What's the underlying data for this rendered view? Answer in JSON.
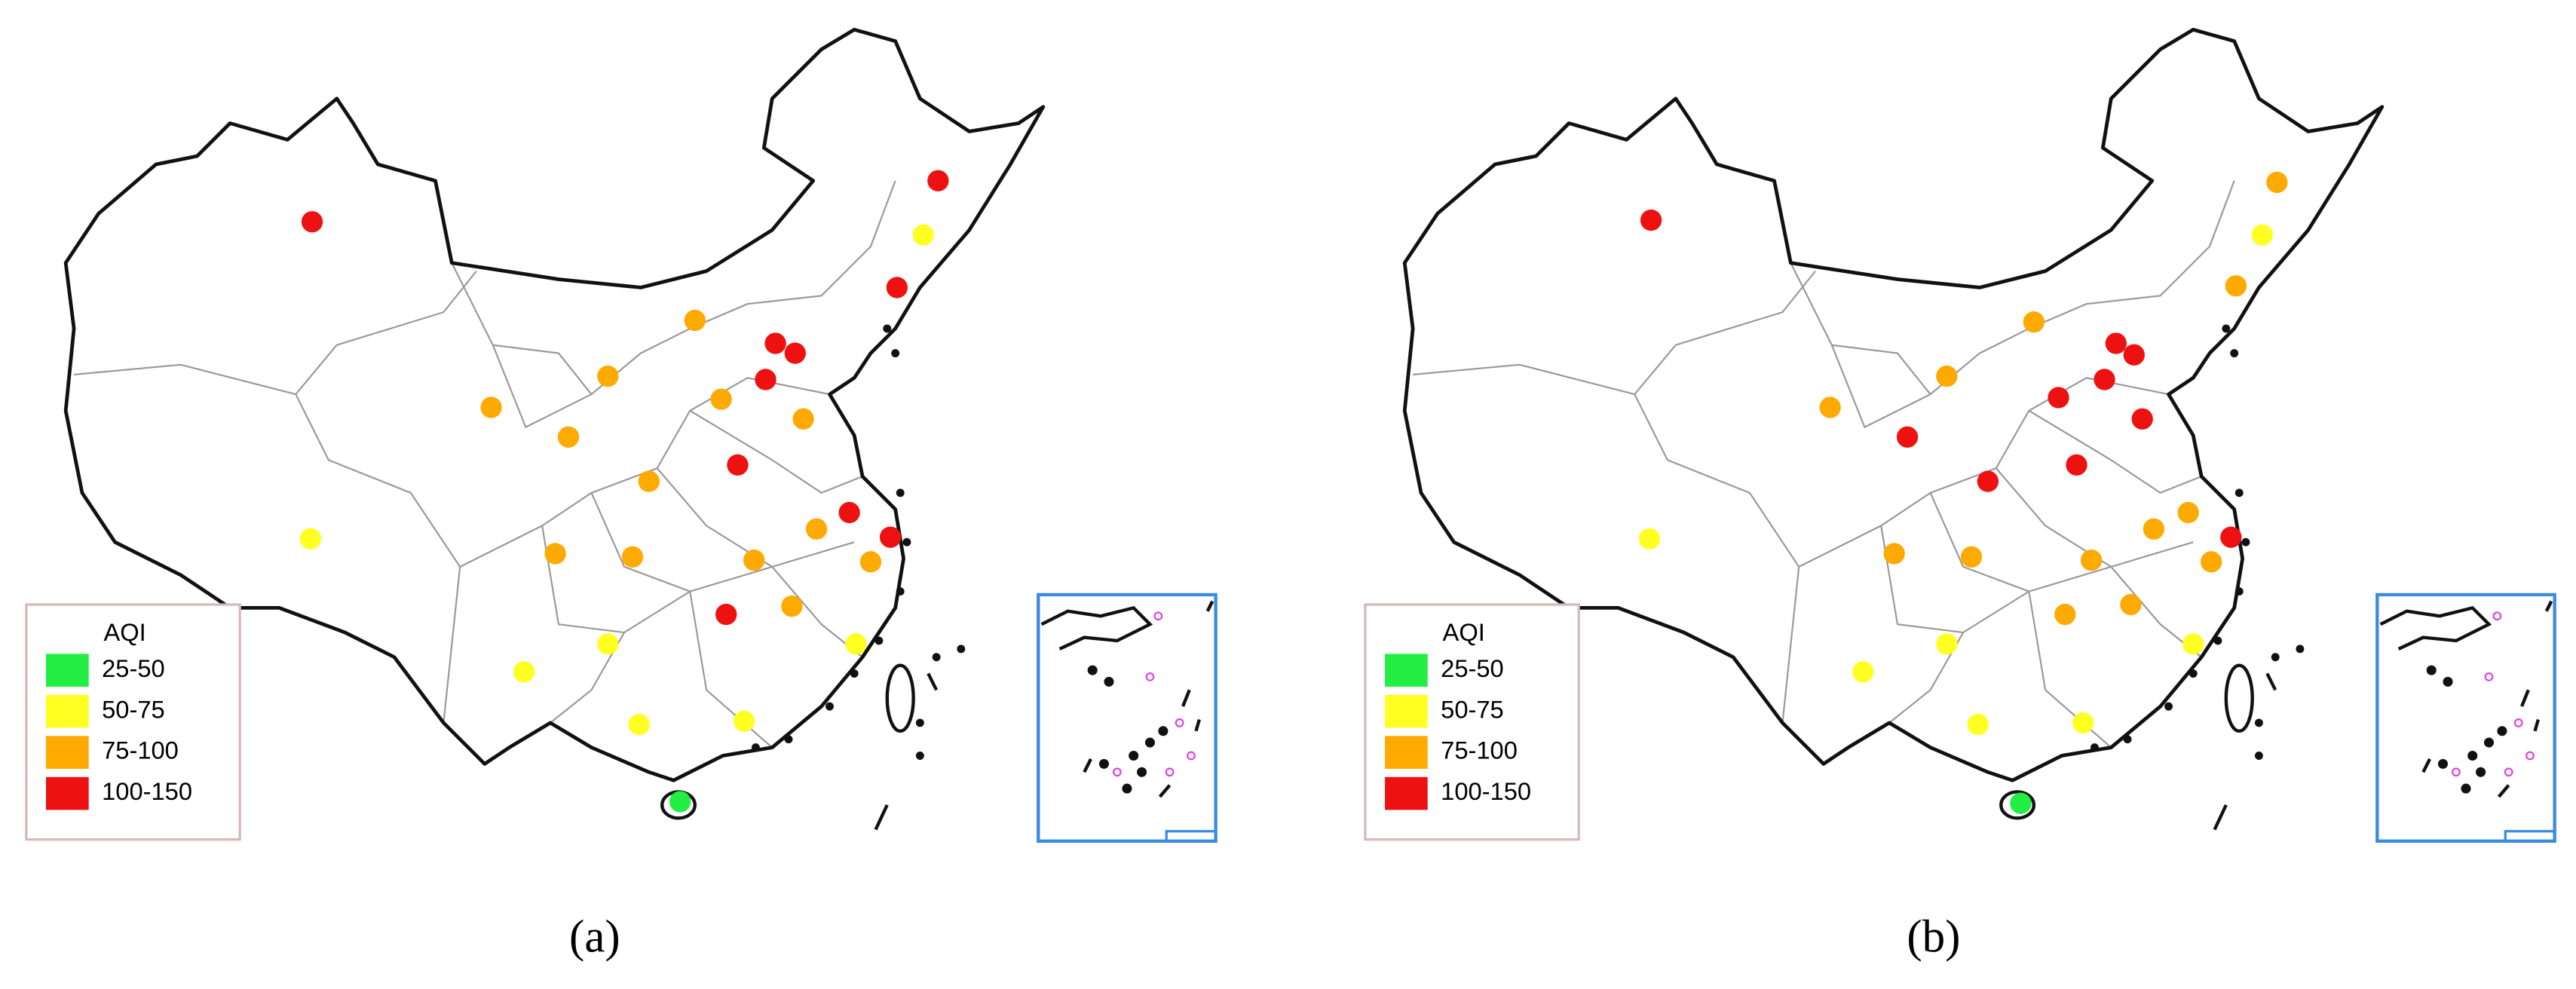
{
  "panels": [
    {
      "caption": "(a)",
      "legend": {
        "title": "AQI",
        "items": [
          {
            "label": "25-50",
            "color": "#22ee44"
          },
          {
            "label": "50-75",
            "color": "#ffff22"
          },
          {
            "label": "75-100",
            "color": "#ffaa00"
          },
          {
            "label": "100-150",
            "color": "#ee1111"
          }
        ]
      }
    },
    {
      "caption": "(b)",
      "legend": {
        "title": "AQI",
        "items": [
          {
            "label": "25-50",
            "color": "#22ee44"
          },
          {
            "label": "50-75",
            "color": "#ffff22"
          },
          {
            "label": "75-100",
            "color": "#ffaa00"
          },
          {
            "label": "100-150",
            "color": "#ee1111"
          }
        ]
      }
    }
  ]
}
